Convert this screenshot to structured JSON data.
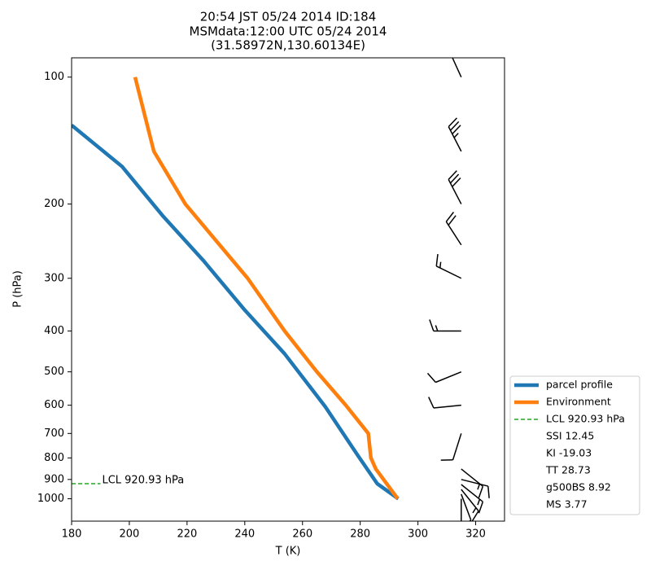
{
  "chart_data": {
    "type": "line",
    "title": [
      "20:54 JST 05/24 2014  ID:184",
      "MSMdata:12:00 UTC 05/24 2014",
      "(31.58972N,130.60134E)"
    ],
    "x_label": "T (K)",
    "y_label": "P (hPa)",
    "xlim": [
      180,
      330
    ],
    "xticks": [
      180,
      200,
      220,
      240,
      260,
      280,
      300,
      320
    ],
    "ylim": [
      1130,
      90
    ],
    "yticks": [
      100,
      200,
      300,
      400,
      500,
      600,
      700,
      800,
      900,
      1000
    ],
    "y_scale": "log",
    "series": [
      {
        "name": "parcel profile",
        "color": "#1f77b4",
        "x": [
          293.2,
          285.9,
          279.2,
          267.9,
          253.8,
          239.7,
          225.6,
          211.5,
          197.5,
          180
        ],
        "values": [
          1000,
          921,
          790,
          605,
          453,
          355,
          272,
          213,
          163,
          130
        ]
      },
      {
        "name": "Environment",
        "color": "#ff7f0e",
        "x": [
          293,
          285.4,
          283.7,
          282.8,
          275,
          265,
          253.8,
          241,
          219.4,
          208.5,
          202
        ],
        "values": [
          1000,
          850,
          800,
          700,
          600,
          500,
          400,
          300,
          200,
          150,
          100
        ]
      }
    ],
    "lcl": {
      "label": "LCL 920.93 hPa",
      "p": 920.93,
      "x": [
        180,
        190
      ],
      "color": "#2ca02c"
    },
    "indices": [
      "SSI 12.45",
      "KI -19.03",
      "TT 28.73",
      "g500BS 8.92",
      "MS 3.77"
    ],
    "barbs": {
      "x": 315,
      "p": [
        100,
        150,
        200,
        250,
        300,
        400,
        500,
        600,
        700,
        850,
        900,
        925,
        950,
        975,
        1000
      ],
      "u": [
        5,
        17,
        14,
        11,
        13.5,
        15,
        9.3,
        10,
        3,
        -10,
        -12,
        -10,
        -8,
        -3,
        0
      ],
      "v": [
        -11,
        -33,
        -27,
        -17,
        -6.6,
        0,
        3.8,
        1,
        9.5,
        8,
        3,
        8,
        10,
        8,
        5
      ]
    }
  }
}
